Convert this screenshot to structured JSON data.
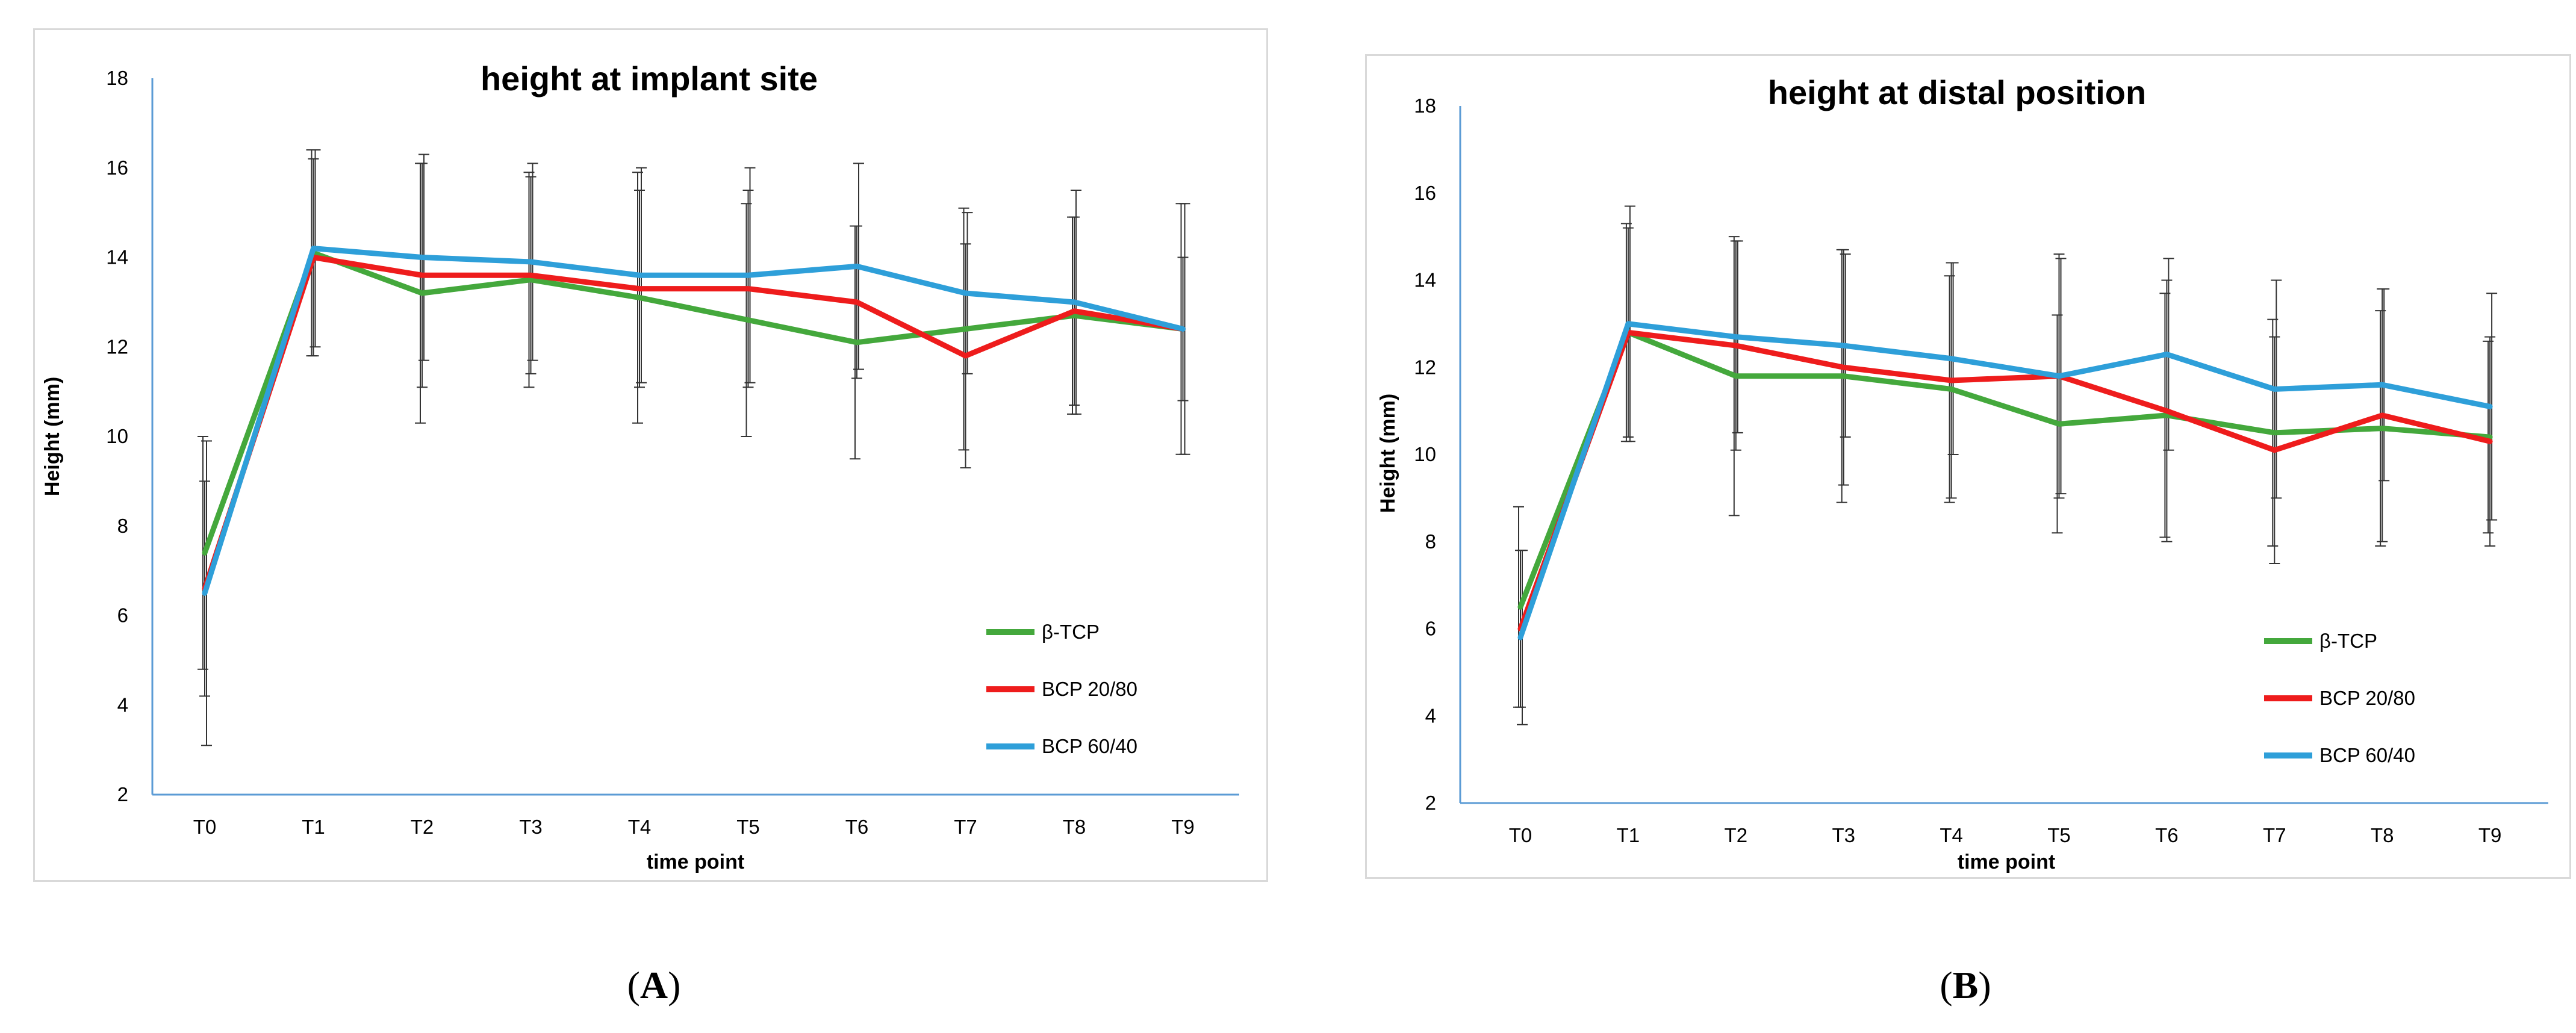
{
  "captions": {
    "a": "A",
    "b": "B"
  },
  "colors": {
    "beta_tcp": "#44a83c",
    "bcp_2080": "#ee1c1c",
    "bcp_6040": "#2e9fd9",
    "axis": "#5b9bd5",
    "error_bar": "#333333"
  },
  "chart_data": [
    {
      "type": "line",
      "panel": "A",
      "title": "height at implant site",
      "xlabel": "time point",
      "ylabel": "Height (mm)",
      "ylim": [
        2,
        18
      ],
      "yticks": [
        2,
        4,
        6,
        8,
        10,
        12,
        14,
        16,
        18
      ],
      "categories": [
        "T0",
        "T1",
        "T2",
        "T3",
        "T4",
        "T5",
        "T6",
        "T7",
        "T8",
        "T9"
      ],
      "legend_position": "bottom-right",
      "series": [
        {
          "name": "β-TCP",
          "color_key": "beta_tcp",
          "values": [
            7.4,
            14.1,
            13.2,
            13.5,
            13.1,
            12.6,
            12.1,
            12.4,
            12.7,
            12.4
          ],
          "error": [
            2.6,
            2.3,
            2.9,
            2.4,
            2.8,
            2.6,
            2.6,
            2.7,
            2.2,
            2.8
          ]
        },
        {
          "name": "BCP 20/80",
          "color_key": "bcp_2080",
          "values": [
            6.6,
            14.0,
            13.6,
            13.6,
            13.3,
            13.3,
            13.0,
            11.8,
            12.8,
            12.4
          ],
          "error": [
            2.4,
            2.2,
            2.5,
            2.2,
            2.2,
            2.2,
            1.7,
            2.5,
            2.1,
            1.6
          ]
        },
        {
          "name": "BCP 60/40",
          "color_key": "bcp_6040",
          "values": [
            6.5,
            14.2,
            14.0,
            13.9,
            13.6,
            13.6,
            13.8,
            13.2,
            13.0,
            12.4
          ],
          "error": [
            3.4,
            2.2,
            2.3,
            2.2,
            2.4,
            2.4,
            2.3,
            1.8,
            2.5,
            2.8
          ]
        }
      ]
    },
    {
      "type": "line",
      "panel": "B",
      "title": "height at distal position",
      "xlabel": "time point",
      "ylabel": "Height (mm)",
      "ylim": [
        2,
        18
      ],
      "yticks": [
        2,
        4,
        6,
        8,
        10,
        12,
        14,
        16,
        18
      ],
      "categories": [
        "T0",
        "T1",
        "T2",
        "T3",
        "T4",
        "T5",
        "T6",
        "T7",
        "T8",
        "T9"
      ],
      "legend_position": "bottom-right",
      "series": [
        {
          "name": "β-TCP",
          "color_key": "beta_tcp",
          "values": [
            6.5,
            12.8,
            11.8,
            11.8,
            11.5,
            10.7,
            10.9,
            10.5,
            10.6,
            10.4
          ],
          "error": [
            2.3,
            2.5,
            3.2,
            2.9,
            2.6,
            2.5,
            2.8,
            2.6,
            2.7,
            2.2
          ]
        },
        {
          "name": "BCP 20/80",
          "color_key": "bcp_2080",
          "values": [
            6.0,
            12.8,
            12.5,
            12.0,
            11.7,
            11.8,
            11.0,
            10.1,
            10.9,
            10.3
          ],
          "error": [
            1.8,
            2.4,
            2.4,
            2.7,
            2.7,
            2.8,
            3.0,
            2.6,
            2.9,
            2.4
          ]
        },
        {
          "name": "BCP 60/40",
          "color_key": "bcp_6040",
          "values": [
            5.8,
            13.0,
            12.7,
            12.5,
            12.2,
            11.8,
            12.3,
            11.5,
            11.6,
            11.1
          ],
          "error": [
            2.0,
            2.7,
            2.2,
            2.1,
            2.2,
            2.7,
            2.2,
            2.5,
            2.2,
            2.6
          ]
        }
      ]
    }
  ]
}
